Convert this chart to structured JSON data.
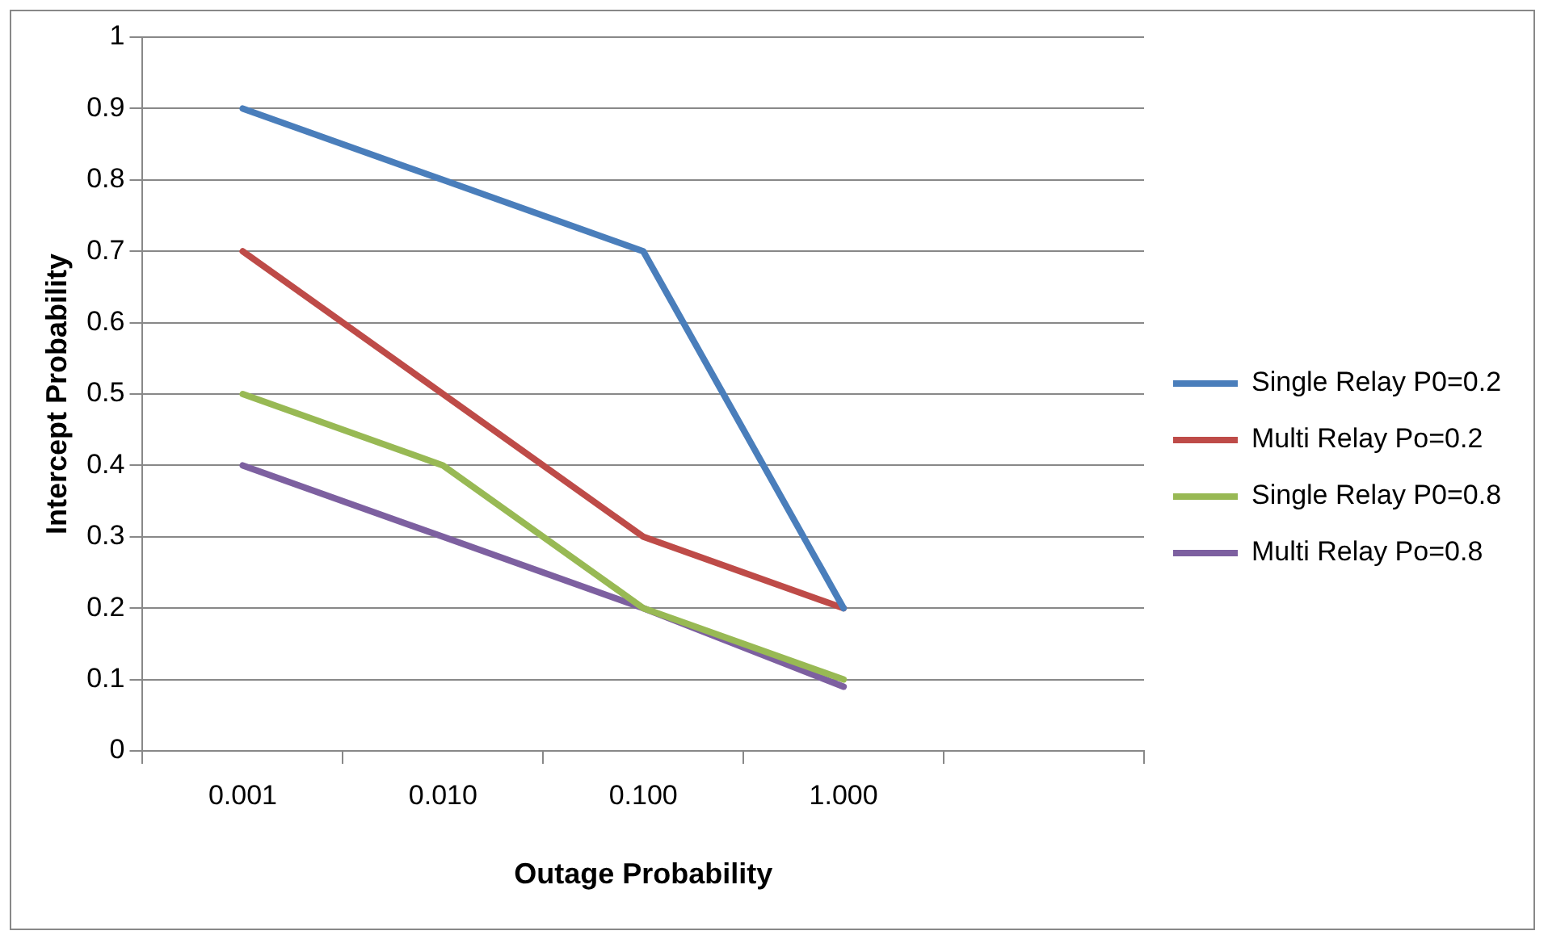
{
  "chart_data": {
    "type": "line",
    "xlabel": "Outage Probability",
    "ylabel": "Intercept Probability",
    "categories": [
      "0.001",
      "0.010",
      "0.100",
      "1.000",
      null
    ],
    "series": [
      {
        "name": "Single Relay P0=0.2",
        "color": "#4a7ebb",
        "values": [
          0.9,
          0.8,
          0.7,
          0.2,
          null
        ]
      },
      {
        "name": "Multi Relay Po=0.2",
        "color": "#be4b48",
        "values": [
          0.7,
          0.5,
          0.3,
          0.2,
          null
        ]
      },
      {
        "name": "Single Relay P0=0.8",
        "color": "#98b954",
        "values": [
          0.5,
          0.4,
          0.2,
          0.1,
          null
        ]
      },
      {
        "name": "Multi Relay Po=0.8",
        "color": "#7d60a0",
        "values": [
          0.4,
          0.3,
          0.2,
          0.09,
          null
        ]
      }
    ],
    "ylim": [
      0,
      1
    ],
    "yticks": [
      0,
      0.1,
      0.2,
      0.3,
      0.4,
      0.5,
      0.6,
      0.7,
      0.8,
      0.9,
      1
    ],
    "grid": "y",
    "legend": "right",
    "marker": "none",
    "line_style": "solid"
  }
}
